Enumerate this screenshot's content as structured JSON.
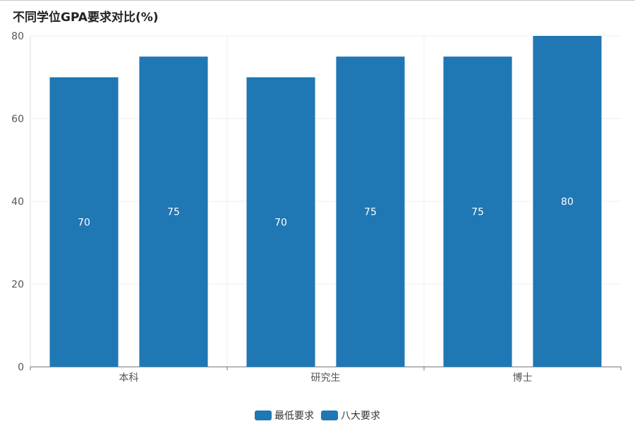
{
  "chart_data": {
    "type": "bar",
    "title": "不同学位GPA要求对比(%)",
    "categories": [
      "本科",
      "研究生",
      "博士"
    ],
    "series": [
      {
        "name": "最低要求",
        "values": [
          70,
          70,
          75
        ],
        "color": "#1f77b4"
      },
      {
        "name": "八大要求",
        "values": [
          75,
          75,
          80
        ],
        "color": "#1f77b4"
      }
    ],
    "ylim": [
      0,
      80
    ],
    "yticks": [
      0,
      20,
      40,
      60,
      80
    ],
    "xlabel": "",
    "ylabel": "",
    "grid": true,
    "legend_position": "bottom-center",
    "show_data_labels": true
  }
}
